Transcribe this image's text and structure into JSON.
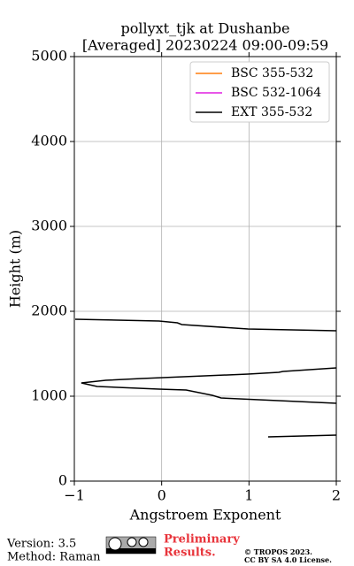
{
  "chart_data": {
    "type": "line",
    "title": "pollyxt_tjk at Dushanbe",
    "subtitle": "[Averaged] 20230224 09:00-09:59",
    "xlabel": "Angstroem Exponent",
    "ylabel": "Height (m)",
    "xlim": [
      -1,
      2
    ],
    "xticks": [
      {
        "value": -1,
        "label": "−1"
      },
      0,
      1,
      2
    ],
    "ylim": [
      0,
      5000
    ],
    "yticks": [
      0,
      1000,
      2000,
      3000,
      4000,
      5000
    ],
    "grid": true,
    "legend": "upper right",
    "y": [
      521,
      542,
      null,
      917,
      979,
      1010,
      1031,
      1073,
      1083,
      1115,
      1156,
      1188,
      1208,
      1260,
      1281,
      1292,
      1333,
      null,
      1771,
      1792,
      1844,
      1865,
      1885,
      1906
    ],
    "series": [
      {
        "name": "BSC 355-532",
        "color": "#ff7f0e",
        "values": [
          null,
          null,
          null,
          null,
          null,
          null,
          null,
          null,
          null,
          null,
          null,
          null,
          null,
          null,
          null,
          null,
          null,
          null,
          null,
          null,
          null,
          null,
          null,
          null
        ]
      },
      {
        "name": "BSC 532-1064",
        "color": "#e01fe0",
        "values": [
          null,
          null,
          null,
          null,
          null,
          null,
          null,
          null,
          null,
          null,
          null,
          null,
          null,
          null,
          null,
          null,
          null,
          null,
          null,
          null,
          null,
          null,
          null,
          null
        ]
      },
      {
        "name": "EXT 355-532",
        "color": "#000000",
        "values": [
          1.22,
          2.0,
          null,
          2.0,
          0.68,
          0.58,
          0.48,
          0.28,
          -0.03,
          -0.74,
          -0.92,
          -0.64,
          -0.23,
          0.99,
          1.34,
          1.39,
          2.0,
          null,
          2.0,
          0.99,
          0.23,
          0.18,
          -0.03,
          -0.99
        ]
      }
    ],
    "footer": {
      "version": "Version: 3.5",
      "method": "Method: Raman",
      "preliminary": "Preliminary",
      "results": "Results.",
      "copyright": "© TROPOS 2023.",
      "license": "CC BY SA 4.0 License."
    }
  }
}
